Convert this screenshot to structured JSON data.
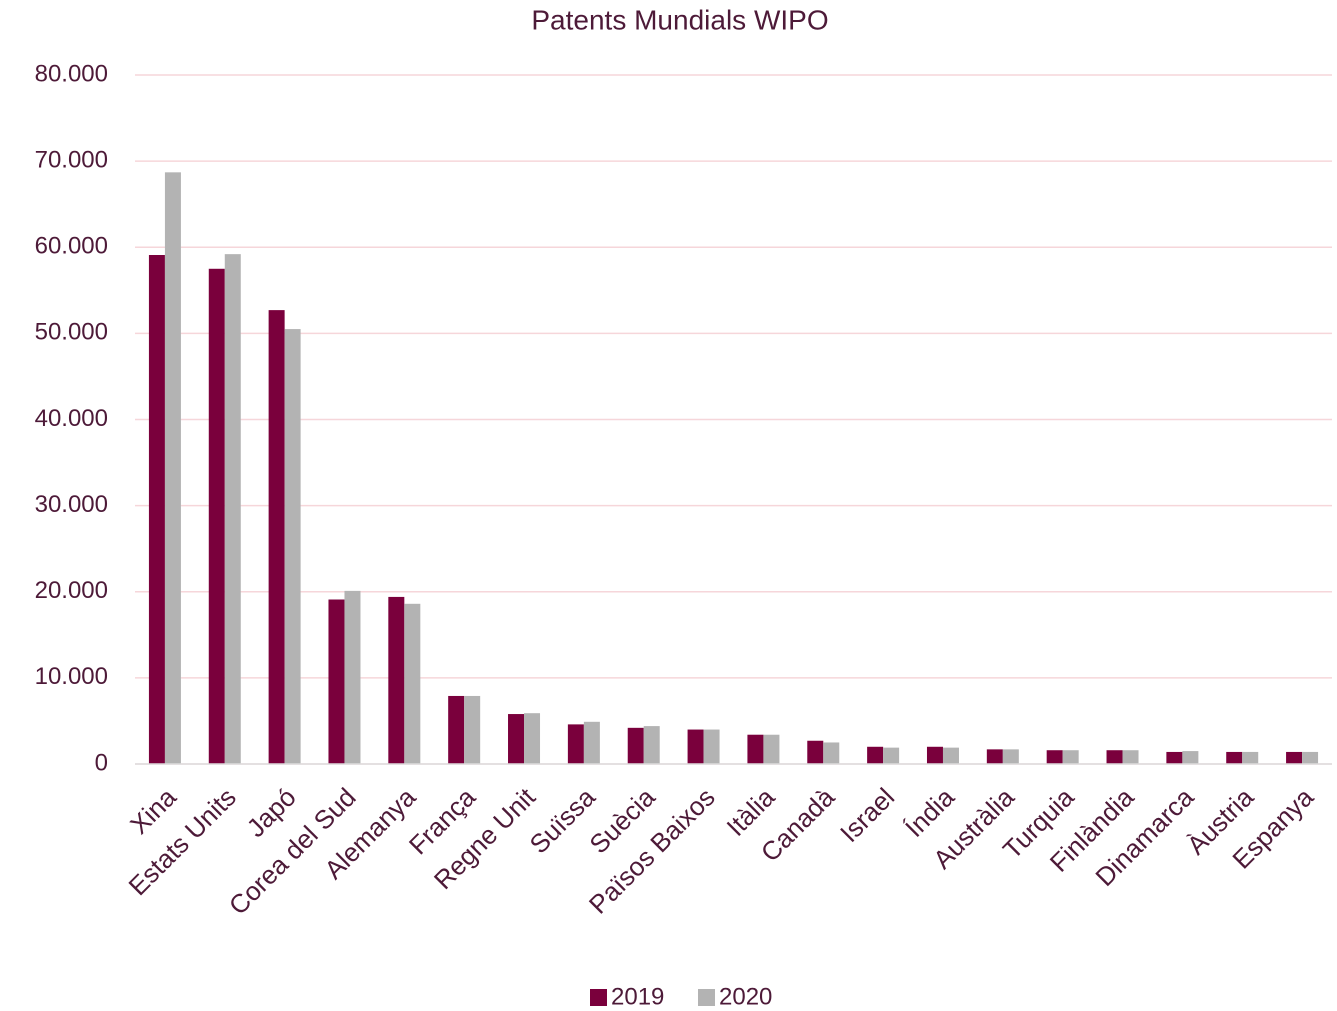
{
  "chart_data": {
    "type": "bar",
    "title": "Patents Mundials WIPO",
    "categories": [
      "Xina",
      "Estats Units",
      "Japó",
      "Corea del Sud",
      "Alemanya",
      "França",
      "Regne Unit",
      "Suïssa",
      "Suècia",
      "Països Baixos",
      "Itàlia",
      "Canadà",
      "Israel",
      "Índia",
      "Austràlia",
      "Turquia",
      "Finlàndia",
      "Dinamarca",
      "Àustria",
      "Espanya"
    ],
    "series": [
      {
        "name": "2019",
        "color": "#7a003c",
        "values": [
          59100,
          57500,
          52700,
          19100,
          19400,
          7900,
          5800,
          4600,
          4200,
          4000,
          3400,
          2700,
          2000,
          2000,
          1700,
          1600,
          1600,
          1400,
          1400,
          1400
        ]
      },
      {
        "name": "2020",
        "color": "#b3b3b3",
        "values": [
          68700,
          59200,
          50500,
          20100,
          18600,
          7900,
          5900,
          4900,
          4400,
          4000,
          3400,
          2500,
          1900,
          1900,
          1700,
          1600,
          1600,
          1500,
          1400,
          1400
        ]
      }
    ],
    "ylim": [
      0,
      80000
    ],
    "yticks": [
      0,
      {
        "value": 10000,
        "label": "10.000"
      },
      {
        "value": 20000,
        "label": "20.000"
      },
      {
        "value": 30000,
        "label": "30.000"
      },
      {
        "value": 40000,
        "label": "40.000"
      },
      {
        "value": 50000,
        "label": "50.000"
      },
      {
        "value": 60000,
        "label": "60.000"
      },
      {
        "value": 70000,
        "label": "70.000"
      },
      {
        "value": 80000,
        "label": "80.000"
      }
    ],
    "grid": true,
    "legend": "bottom"
  }
}
